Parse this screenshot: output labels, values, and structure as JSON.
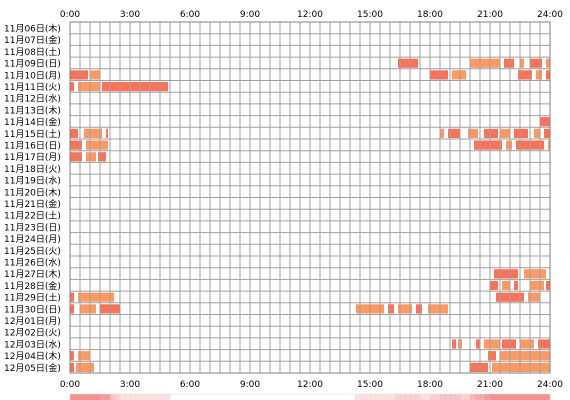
{
  "chart_data": {
    "type": "heatmap",
    "x_ticks": [
      "0:00",
      "3:00",
      "6:00",
      "9:00",
      "12:00",
      "15:00",
      "18:00",
      "21:00",
      "24:00"
    ],
    "x_range_hours": [
      0,
      24
    ],
    "grid": true,
    "rows": [
      {
        "label": "11月06日(木)",
        "segments": []
      },
      {
        "label": "11月07日(金)",
        "segments": []
      },
      {
        "label": "11月08日(土)",
        "segments": []
      },
      {
        "label": "11月09日(日)",
        "segments": [
          [
            16.4,
            17.4
          ],
          [
            20.0,
            21.5
          ],
          [
            21.7,
            22.2
          ],
          [
            22.5,
            22.7
          ],
          [
            23.0,
            23.6
          ],
          [
            23.8,
            24.0
          ]
        ]
      },
      {
        "label": "11月10日(月)",
        "segments": [
          [
            0.0,
            0.9
          ],
          [
            1.0,
            1.5
          ],
          [
            18.0,
            18.9
          ],
          [
            19.1,
            19.8
          ],
          [
            22.4,
            23.1
          ],
          [
            23.3,
            23.6
          ],
          [
            23.8,
            24.0
          ]
        ]
      },
      {
        "label": "11月11日(火)",
        "segments": [
          [
            0.0,
            0.2
          ],
          [
            0.4,
            1.5
          ],
          [
            1.6,
            4.9
          ]
        ]
      },
      {
        "label": "11月12日(水)",
        "segments": []
      },
      {
        "label": "11月13日(木)",
        "segments": []
      },
      {
        "label": "11月14日(金)",
        "segments": [
          [
            23.5,
            24.0
          ]
        ]
      },
      {
        "label": "11月15日(土)",
        "segments": [
          [
            0.0,
            0.4
          ],
          [
            0.7,
            1.6
          ],
          [
            1.8,
            1.9
          ],
          [
            18.5,
            18.7
          ],
          [
            18.9,
            19.5
          ],
          [
            19.9,
            20.4
          ],
          [
            20.7,
            21.4
          ],
          [
            21.5,
            22.0
          ],
          [
            22.2,
            22.9
          ],
          [
            23.2,
            23.5
          ],
          [
            23.7,
            24.0
          ]
        ]
      },
      {
        "label": "11月16日(日)",
        "segments": [
          [
            0.0,
            0.6
          ],
          [
            0.8,
            1.9
          ],
          [
            20.2,
            21.6
          ],
          [
            21.8,
            22.1
          ],
          [
            22.3,
            23.7
          ],
          [
            23.9,
            24.0
          ]
        ]
      },
      {
        "label": "11月17日(月)",
        "segments": [
          [
            0.0,
            0.6
          ],
          [
            0.8,
            1.3
          ],
          [
            1.4,
            1.8
          ]
        ]
      },
      {
        "label": "11月18日(火)",
        "segments": []
      },
      {
        "label": "11月19日(水)",
        "segments": []
      },
      {
        "label": "11月20日(木)",
        "segments": []
      },
      {
        "label": "11月21日(金)",
        "segments": []
      },
      {
        "label": "11月22日(土)",
        "segments": []
      },
      {
        "label": "11月23日(日)",
        "segments": []
      },
      {
        "label": "11月24日(月)",
        "segments": []
      },
      {
        "label": "11月25日(火)",
        "segments": []
      },
      {
        "label": "11月26日(水)",
        "segments": []
      },
      {
        "label": "11月27日(木)",
        "segments": [
          [
            21.2,
            22.4
          ],
          [
            22.7,
            23.8
          ]
        ]
      },
      {
        "label": "11月28日(金)",
        "segments": [
          [
            21.0,
            21.4
          ],
          [
            21.6,
            22.0
          ],
          [
            22.2,
            22.4
          ],
          [
            23.0,
            23.7
          ],
          [
            23.8,
            24.0
          ]
        ]
      },
      {
        "label": "11月29日(土)",
        "segments": [
          [
            0.0,
            0.2
          ],
          [
            0.4,
            2.2
          ],
          [
            21.3,
            22.7
          ],
          [
            22.9,
            23.5
          ]
        ]
      },
      {
        "label": "11月30日(日)",
        "segments": [
          [
            0.0,
            0.2
          ],
          [
            0.5,
            1.3
          ],
          [
            1.5,
            2.5
          ],
          [
            14.3,
            15.7
          ],
          [
            15.9,
            16.2
          ],
          [
            16.4,
            17.1
          ],
          [
            17.3,
            17.6
          ],
          [
            17.9,
            18.9
          ]
        ]
      },
      {
        "label": "12月01日(月)",
        "segments": []
      },
      {
        "label": "12月02日(火)",
        "segments": []
      },
      {
        "label": "12月03日(水)",
        "segments": [
          [
            19.1,
            19.3
          ],
          [
            19.4,
            19.6
          ],
          [
            20.3,
            20.5
          ],
          [
            20.7,
            21.5
          ],
          [
            21.6,
            22.3
          ],
          [
            22.5,
            23.2
          ],
          [
            23.4,
            24.0
          ]
        ]
      },
      {
        "label": "12月04日(木)",
        "segments": [
          [
            0.0,
            0.2
          ],
          [
            0.4,
            1.0
          ],
          [
            20.9,
            21.3
          ],
          [
            21.5,
            24.0
          ]
        ]
      },
      {
        "label": "12月05日(金)",
        "segments": [
          [
            0.0,
            0.2
          ],
          [
            0.3,
            1.2
          ],
          [
            20.0,
            20.9
          ],
          [
            21.1,
            24.0
          ]
        ]
      }
    ]
  },
  "colors": {
    "bar": "#f9735a",
    "bar_alt": "#fb9a64",
    "grid": "#a0a0a0",
    "border": "#808080",
    "text": "#000000",
    "density_max": "#f08d8d"
  }
}
